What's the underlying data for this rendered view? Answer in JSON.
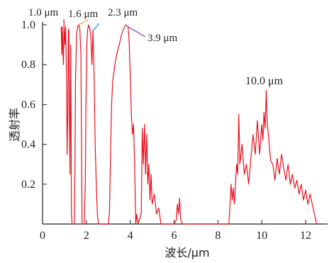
{
  "chart_data": {
    "type": "line",
    "xlabel": "波长/μm",
    "ylabel": "透射率",
    "xlim": [
      0,
      13
    ],
    "ylim": [
      0,
      1.0
    ],
    "xticks": [
      0,
      2,
      4,
      6,
      8,
      10,
      12
    ],
    "yticks": [
      0.2,
      0.4,
      0.6,
      0.8,
      1.0
    ],
    "xtick_labels": [
      "0",
      "2",
      "4",
      "6",
      "8",
      "10",
      "12"
    ],
    "ytick_labels": [
      "0.2",
      "0.4",
      "0.6",
      "0.8",
      "1.0"
    ],
    "grid": false,
    "line_color": "#e8101c",
    "series": [
      {
        "points": [
          [
            0.85,
            0.99
          ],
          [
            0.88,
            0.85
          ],
          [
            0.9,
            0.99
          ],
          [
            0.95,
            0.8
          ],
          [
            0.98,
            1.0
          ],
          [
            1.02,
            0.9
          ],
          [
            1.05,
            0.99
          ],
          [
            1.1,
            0.7
          ],
          [
            1.12,
            0.35
          ],
          [
            1.15,
            0.55
          ],
          [
            1.18,
            0.97
          ],
          [
            1.2,
            0.98
          ],
          [
            1.22,
            0.6
          ],
          [
            1.25,
            0.25
          ],
          [
            1.28,
            0.9
          ],
          [
            1.3,
            0.55
          ],
          [
            1.32,
            0.05
          ],
          [
            1.35,
            0.0
          ],
          [
            1.4,
            0.0
          ],
          [
            1.45,
            0.0
          ],
          [
            1.48,
            0.3
          ],
          [
            1.5,
            0.7
          ],
          [
            1.55,
            0.95
          ],
          [
            1.6,
            0.99
          ],
          [
            1.65,
            1.0
          ],
          [
            1.7,
            0.98
          ],
          [
            1.75,
            0.85
          ],
          [
            1.78,
            0.4
          ],
          [
            1.8,
            0.0
          ],
          [
            1.85,
            0.0
          ],
          [
            1.9,
            0.0
          ],
          [
            1.95,
            0.2
          ],
          [
            1.98,
            0.6
          ],
          [
            2.02,
            0.9
          ],
          [
            2.05,
            0.97
          ],
          [
            2.1,
            1.0
          ],
          [
            2.15,
            0.98
          ],
          [
            2.2,
            0.95
          ],
          [
            2.25,
            0.8
          ],
          [
            2.3,
            0.97
          ],
          [
            2.35,
            0.75
          ],
          [
            2.4,
            0.4
          ],
          [
            2.45,
            0.2
          ],
          [
            2.5,
            0.05
          ],
          [
            2.55,
            0.0
          ],
          [
            2.7,
            0.0
          ],
          [
            2.85,
            0.0
          ],
          [
            3.0,
            0.0
          ],
          [
            3.05,
            0.05
          ],
          [
            3.1,
            0.35
          ],
          [
            3.15,
            0.6
          ],
          [
            3.2,
            0.72
          ],
          [
            3.3,
            0.8
          ],
          [
            3.4,
            0.86
          ],
          [
            3.5,
            0.9
          ],
          [
            3.6,
            0.95
          ],
          [
            3.7,
            0.98
          ],
          [
            3.8,
            1.0
          ],
          [
            3.9,
            0.99
          ],
          [
            3.95,
            0.92
          ],
          [
            4.0,
            0.75
          ],
          [
            4.05,
            0.55
          ],
          [
            4.1,
            0.45
          ],
          [
            4.15,
            0.5
          ],
          [
            4.2,
            0.3
          ],
          [
            4.25,
            0.0
          ],
          [
            4.3,
            0.05
          ],
          [
            4.35,
            0.0
          ],
          [
            4.5,
            0.05
          ],
          [
            4.55,
            0.48
          ],
          [
            4.6,
            0.3
          ],
          [
            4.65,
            0.5
          ],
          [
            4.7,
            0.25
          ],
          [
            4.75,
            0.45
          ],
          [
            4.8,
            0.2
          ],
          [
            4.85,
            0.3
          ],
          [
            4.9,
            0.12
          ],
          [
            4.95,
            0.25
          ],
          [
            5.0,
            0.1
          ],
          [
            5.1,
            0.15
          ],
          [
            5.2,
            0.05
          ],
          [
            5.3,
            0.08
          ],
          [
            5.4,
            0.0
          ],
          [
            5.6,
            0.0
          ],
          [
            6.0,
            0.0
          ],
          [
            6.1,
            0.02
          ],
          [
            6.15,
            0.1
          ],
          [
            6.2,
            0.05
          ],
          [
            6.25,
            0.13
          ],
          [
            6.3,
            0.02
          ],
          [
            6.4,
            0.0
          ],
          [
            7.0,
            0.0
          ],
          [
            8.0,
            0.0
          ],
          [
            8.5,
            0.0
          ],
          [
            8.55,
            0.1
          ],
          [
            8.6,
            0.2
          ],
          [
            8.65,
            0.12
          ],
          [
            8.7,
            0.18
          ],
          [
            8.75,
            0.1
          ],
          [
            8.8,
            0.2
          ],
          [
            8.85,
            0.3
          ],
          [
            8.9,
            0.25
          ],
          [
            8.95,
            0.55
          ],
          [
            9.0,
            0.3
          ],
          [
            9.1,
            0.4
          ],
          [
            9.2,
            0.25
          ],
          [
            9.3,
            0.3
          ],
          [
            9.4,
            0.2
          ],
          [
            9.5,
            0.33
          ],
          [
            9.6,
            0.45
          ],
          [
            9.7,
            0.35
          ],
          [
            9.8,
            0.52
          ],
          [
            9.9,
            0.35
          ],
          [
            10.0,
            0.5
          ],
          [
            10.05,
            0.42
          ],
          [
            10.1,
            0.56
          ],
          [
            10.15,
            0.48
          ],
          [
            10.2,
            0.67
          ],
          [
            10.25,
            0.5
          ],
          [
            10.3,
            0.45
          ],
          [
            10.4,
            0.32
          ],
          [
            10.5,
            0.3
          ],
          [
            10.6,
            0.22
          ],
          [
            10.7,
            0.33
          ],
          [
            10.8,
            0.25
          ],
          [
            10.9,
            0.35
          ],
          [
            11.0,
            0.28
          ],
          [
            11.1,
            0.22
          ],
          [
            11.2,
            0.3
          ],
          [
            11.3,
            0.2
          ],
          [
            11.4,
            0.25
          ],
          [
            11.5,
            0.18
          ],
          [
            11.6,
            0.22
          ],
          [
            11.7,
            0.15
          ],
          [
            11.8,
            0.2
          ],
          [
            11.9,
            0.12
          ],
          [
            12.0,
            0.17
          ],
          [
            12.1,
            0.1
          ],
          [
            12.2,
            0.15
          ],
          [
            12.3,
            0.1
          ],
          [
            12.4,
            0.05
          ],
          [
            12.5,
            0.0
          ]
        ]
      }
    ],
    "annotations": [
      {
        "text": "1.0 μm",
        "x": 0.98,
        "y": 1.0,
        "arrow_color": "#e8101c"
      },
      {
        "text": "1.6 μm",
        "x": 1.65,
        "y": 1.0,
        "arrow_color": "#e5a21e"
      },
      {
        "text": "2.3 μm",
        "x": 2.3,
        "y": 0.97,
        "arrow_color": "#2a84d8"
      },
      {
        "text": "3.9 μm",
        "x": 3.9,
        "y": 0.99,
        "arrow_color": "#8a35c6"
      },
      {
        "text": "10.0 μm",
        "x": 10.2,
        "y": 0.67,
        "arrow_color": null
      }
    ]
  }
}
